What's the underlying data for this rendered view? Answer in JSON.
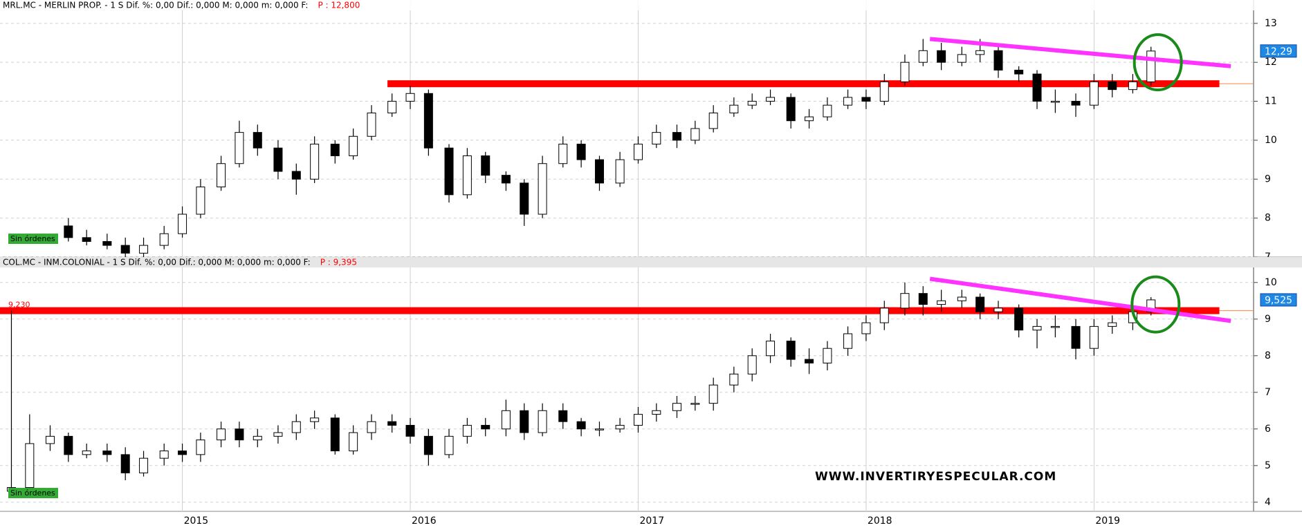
{
  "chart_data": [
    {
      "type": "candlestick",
      "header": "MRL.MC - MERLIN PROP. -  1 S Dif. %: 0,00 Dif.: 0,000 M: 0,000 m: 0,000 F:",
      "price_label": "P : 12,800",
      "order_label": "Sin órdenes",
      "last_price": {
        "value": 12.29,
        "label": "12,29"
      },
      "xlim": [
        2014.2,
        2019.7
      ],
      "xticks": [
        2015,
        2016,
        2017,
        2018,
        2019
      ],
      "ylim": [
        7.0,
        13.6
      ],
      "yticks": [
        7,
        8,
        9,
        10,
        11,
        12,
        13
      ],
      "x": [
        2014.5,
        2014.58,
        2014.67,
        2014.75,
        2014.83,
        2014.92,
        2015,
        2015.08,
        2015.17,
        2015.25,
        2015.33,
        2015.42,
        2015.5,
        2015.58,
        2015.67,
        2015.75,
        2015.83,
        2015.92,
        2016,
        2016.08,
        2016.17,
        2016.25,
        2016.33,
        2016.42,
        2016.5,
        2016.58,
        2016.67,
        2016.75,
        2016.83,
        2016.92,
        2017,
        2017.08,
        2017.17,
        2017.25,
        2017.33,
        2017.42,
        2017.5,
        2017.58,
        2017.67,
        2017.75,
        2017.83,
        2017.92,
        2018,
        2018.08,
        2018.17,
        2018.25,
        2018.33,
        2018.42,
        2018.5,
        2018.58,
        2018.67,
        2018.75,
        2018.83,
        2018.92,
        2019,
        2019.08,
        2019.17,
        2019.25
      ],
      "open": [
        7.8,
        7.5,
        7.4,
        7.3,
        7.1,
        7.3,
        7.6,
        8.1,
        8.8,
        9.4,
        10.2,
        9.8,
        9.2,
        9.0,
        9.9,
        9.6,
        10.1,
        10.7,
        11.0,
        11.2,
        9.8,
        8.6,
        9.6,
        9.1,
        8.9,
        8.1,
        9.4,
        9.9,
        9.5,
        8.9,
        9.5,
        9.9,
        10.2,
        10.0,
        10.3,
        10.7,
        10.9,
        11.0,
        11.1,
        10.5,
        10.6,
        10.9,
        11.1,
        11.0,
        11.5,
        12.0,
        12.3,
        12.0,
        12.2,
        12.3,
        11.8,
        11.7,
        11.0,
        11.0,
        10.9,
        11.5,
        11.3,
        11.5
      ],
      "high": [
        8.0,
        7.7,
        7.6,
        7.5,
        7.5,
        7.8,
        8.3,
        9.0,
        9.6,
        10.5,
        10.4,
        10.0,
        9.4,
        10.1,
        10.0,
        10.3,
        10.9,
        11.2,
        11.4,
        11.3,
        9.9,
        9.8,
        9.7,
        9.2,
        9.0,
        9.6,
        10.1,
        10.0,
        9.6,
        9.7,
        10.1,
        10.4,
        10.4,
        10.5,
        10.9,
        11.1,
        11.2,
        11.3,
        11.2,
        10.8,
        11.1,
        11.3,
        11.3,
        11.7,
        12.2,
        12.6,
        12.5,
        12.4,
        12.6,
        12.4,
        11.9,
        11.8,
        11.3,
        11.2,
        11.7,
        11.7,
        11.7,
        12.4
      ],
      "low": [
        7.4,
        7.3,
        7.2,
        7.0,
        7.0,
        7.2,
        7.5,
        8.0,
        8.7,
        9.3,
        9.6,
        9.0,
        8.6,
        8.9,
        9.4,
        9.5,
        10.0,
        10.6,
        10.8,
        9.6,
        8.4,
        8.5,
        8.9,
        8.7,
        7.8,
        8.0,
        9.3,
        9.3,
        8.7,
        8.8,
        9.4,
        9.8,
        9.8,
        9.9,
        10.2,
        10.6,
        10.8,
        10.9,
        10.3,
        10.3,
        10.5,
        10.8,
        10.8,
        10.9,
        11.4,
        11.9,
        11.8,
        11.9,
        12.0,
        11.6,
        11.5,
        10.8,
        10.7,
        10.6,
        10.8,
        11.1,
        11.2,
        11.4
      ],
      "close": [
        7.5,
        7.4,
        7.3,
        7.1,
        7.3,
        7.6,
        8.1,
        8.8,
        9.4,
        10.2,
        9.8,
        9.2,
        9.0,
        9.9,
        9.6,
        10.1,
        10.7,
        11.0,
        11.2,
        9.8,
        8.6,
        9.6,
        9.1,
        8.9,
        8.1,
        9.4,
        9.9,
        9.5,
        8.9,
        9.5,
        9.9,
        10.2,
        10.0,
        10.3,
        10.7,
        10.9,
        11.0,
        11.1,
        10.5,
        10.6,
        10.9,
        11.1,
        11.0,
        11.5,
        12.0,
        12.3,
        12.0,
        12.2,
        12.3,
        11.8,
        11.7,
        11.0,
        11.0,
        10.9,
        11.5,
        11.3,
        11.5,
        12.29
      ],
      "support": {
        "x": [
          2015.9,
          2019.55
        ],
        "y": 11.45,
        "color": "#ff0000"
      },
      "trend": {
        "x": [
          2018.28,
          2019.6
        ],
        "y": [
          12.6,
          11.9
        ],
        "color": "#ff33ff"
      },
      "circle": {
        "x": 2019.28,
        "y": 12.0,
        "color": "#1a8a1a"
      }
    },
    {
      "type": "candlestick",
      "header": "COL.MC - INM.COLONIAL -  1 S Dif. %: 0,00 Dif.: 0,000 M: 0,000 m: 0,000 F:",
      "price_label": "P : 9,395",
      "order_label": "Sin órdenes",
      "last_price": {
        "value": 9.525,
        "label": "9,525"
      },
      "xlim": [
        2014.2,
        2019.7
      ],
      "xticks": [
        2015,
        2016,
        2017,
        2018,
        2019
      ],
      "ylim": [
        3.75,
        10.43
      ],
      "yticks": [
        4,
        5,
        6,
        7,
        8,
        9,
        10
      ],
      "x": [
        2014.25,
        2014.33,
        2014.42,
        2014.5,
        2014.58,
        2014.67,
        2014.75,
        2014.83,
        2014.92,
        2015,
        2015.08,
        2015.17,
        2015.25,
        2015.33,
        2015.42,
        2015.5,
        2015.58,
        2015.67,
        2015.75,
        2015.83,
        2015.92,
        2016,
        2016.08,
        2016.17,
        2016.25,
        2016.33,
        2016.42,
        2016.5,
        2016.58,
        2016.67,
        2016.75,
        2016.83,
        2016.92,
        2017,
        2017.08,
        2017.17,
        2017.25,
        2017.33,
        2017.42,
        2017.5,
        2017.58,
        2017.67,
        2017.75,
        2017.83,
        2017.92,
        2018,
        2018.08,
        2018.17,
        2018.25,
        2018.33,
        2018.42,
        2018.5,
        2018.58,
        2018.67,
        2018.75,
        2018.83,
        2018.92,
        2019,
        2019.08,
        2019.17,
        2019.25
      ],
      "open": [
        4.3,
        4.4,
        5.6,
        5.8,
        5.3,
        5.4,
        5.3,
        4.8,
        5.2,
        5.4,
        5.3,
        5.7,
        6.0,
        5.7,
        5.8,
        5.9,
        6.2,
        6.3,
        5.4,
        5.9,
        6.2,
        6.1,
        5.8,
        5.3,
        5.8,
        6.1,
        6.0,
        6.5,
        5.9,
        6.5,
        6.2,
        6.0,
        6.0,
        6.1,
        6.4,
        6.5,
        6.7,
        6.7,
        7.2,
        7.5,
        8.0,
        8.4,
        7.9,
        7.8,
        8.2,
        8.6,
        8.9,
        9.3,
        9.7,
        9.4,
        9.5,
        9.6,
        9.2,
        9.3,
        8.7,
        8.8,
        8.8,
        8.2,
        8.8,
        8.9,
        9.2
      ],
      "high": [
        9.23,
        6.4,
        6.1,
        5.9,
        5.6,
        5.6,
        5.5,
        5.4,
        5.6,
        5.6,
        5.9,
        6.2,
        6.2,
        6.0,
        6.1,
        6.4,
        6.5,
        6.4,
        6.1,
        6.4,
        6.4,
        6.3,
        6.0,
        6.0,
        6.3,
        6.3,
        6.8,
        6.7,
        6.7,
        6.7,
        6.3,
        6.2,
        6.3,
        6.6,
        6.7,
        6.9,
        6.9,
        7.4,
        7.7,
        8.2,
        8.6,
        8.5,
        8.2,
        8.4,
        8.8,
        9.1,
        9.5,
        10.0,
        9.9,
        9.8,
        9.8,
        9.7,
        9.5,
        9.4,
        9.0,
        9.1,
        9.0,
        9.0,
        9.1,
        9.4,
        9.6
      ],
      "low": [
        4.2,
        4.3,
        5.4,
        5.1,
        5.2,
        5.1,
        4.6,
        4.7,
        5.0,
        5.1,
        5.1,
        5.5,
        5.5,
        5.5,
        5.6,
        5.7,
        6.0,
        5.3,
        5.3,
        5.7,
        5.9,
        5.6,
        5.0,
        5.2,
        5.6,
        5.8,
        5.8,
        5.7,
        5.8,
        6.0,
        5.8,
        5.8,
        5.9,
        5.9,
        6.2,
        6.3,
        6.5,
        6.5,
        7.0,
        7.3,
        7.8,
        7.7,
        7.5,
        7.6,
        8.0,
        8.4,
        8.7,
        9.1,
        9.1,
        9.2,
        9.3,
        9.0,
        9.0,
        8.5,
        8.2,
        8.5,
        7.9,
        8.0,
        8.6,
        8.7,
        9.1
      ],
      "close": [
        4.4,
        5.6,
        5.8,
        5.3,
        5.4,
        5.3,
        4.8,
        5.2,
        5.4,
        5.3,
        5.7,
        6.0,
        5.7,
        5.8,
        5.9,
        6.2,
        6.3,
        5.4,
        5.9,
        6.2,
        6.1,
        5.8,
        5.3,
        5.8,
        6.1,
        6.0,
        6.5,
        5.9,
        6.5,
        6.2,
        6.0,
        6.0,
        6.1,
        6.4,
        6.5,
        6.7,
        6.7,
        7.2,
        7.5,
        8.0,
        8.4,
        7.9,
        7.8,
        8.2,
        8.6,
        8.9,
        9.3,
        9.7,
        9.4,
        9.5,
        9.6,
        9.2,
        9.3,
        8.7,
        8.8,
        8.8,
        8.2,
        8.8,
        8.9,
        9.2,
        9.525
      ],
      "support": {
        "x": [
          2014.2,
          2019.55
        ],
        "y": {
          "value": 9.23,
          "label": "9,230"
        },
        "color": "#ff0000"
      },
      "trend": {
        "x": [
          2018.28,
          2019.6
        ],
        "y": [
          10.1,
          8.95
        ],
        "color": "#ff33ff"
      },
      "circle": {
        "x": 2019.27,
        "y": 9.4,
        "color": "#1a8a1a"
      }
    }
  ],
  "watermark": "WWW.INVERTIRYESPECULAR.COM"
}
